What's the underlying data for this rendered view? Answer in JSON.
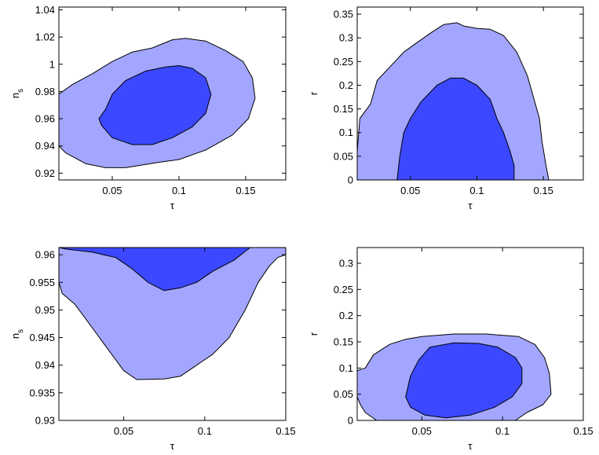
{
  "colors": {
    "outer_contour": "#a3a6ff",
    "inner_contour": "#3b48ff",
    "axes": "#000000",
    "background": "#ffffff"
  },
  "chart_data": [
    {
      "type": "contour",
      "xlabel": "τ",
      "ylabel": "n",
      "ylabel_sub": "s",
      "xlim": [
        0.01,
        0.18
      ],
      "ylim": [
        0.915,
        1.042
      ],
      "xticks": [
        "0.05",
        "0.1",
        "0.15"
      ],
      "xtick_values": [
        0.05,
        0.1,
        0.15
      ],
      "yticks": [
        "0.92",
        "0.94",
        "0.96",
        "0.98",
        "1",
        "1.02",
        "1.04"
      ],
      "ytick_values": [
        0.92,
        0.94,
        0.96,
        0.98,
        1.0,
        1.02,
        1.04
      ],
      "contours": {
        "outer": [
          [
            0.01,
            0.978
          ],
          [
            0.02,
            0.985
          ],
          [
            0.035,
            0.993
          ],
          [
            0.05,
            1.002
          ],
          [
            0.065,
            1.009
          ],
          [
            0.08,
            1.012
          ],
          [
            0.095,
            1.018
          ],
          [
            0.105,
            1.019
          ],
          [
            0.12,
            1.017
          ],
          [
            0.135,
            1.01
          ],
          [
            0.148,
            1.002
          ],
          [
            0.155,
            0.99
          ],
          [
            0.157,
            0.975
          ],
          [
            0.152,
            0.96
          ],
          [
            0.14,
            0.948
          ],
          [
            0.12,
            0.937
          ],
          [
            0.1,
            0.93
          ],
          [
            0.085,
            0.928
          ],
          [
            0.06,
            0.924
          ],
          [
            0.045,
            0.924
          ],
          [
            0.03,
            0.927
          ],
          [
            0.015,
            0.935
          ],
          [
            0.01,
            0.94
          ]
        ],
        "inner": [
          [
            0.045,
            0.967
          ],
          [
            0.05,
            0.978
          ],
          [
            0.06,
            0.988
          ],
          [
            0.075,
            0.995
          ],
          [
            0.09,
            0.998
          ],
          [
            0.1,
            0.999
          ],
          [
            0.11,
            0.997
          ],
          [
            0.12,
            0.99
          ],
          [
            0.124,
            0.978
          ],
          [
            0.12,
            0.964
          ],
          [
            0.11,
            0.954
          ],
          [
            0.095,
            0.946
          ],
          [
            0.08,
            0.941
          ],
          [
            0.065,
            0.941
          ],
          [
            0.05,
            0.946
          ],
          [
            0.042,
            0.955
          ],
          [
            0.04,
            0.96
          ]
        ]
      }
    },
    {
      "type": "contour",
      "xlabel": "τ",
      "ylabel": "r",
      "ylabel_sub": "",
      "xlim": [
        0.01,
        0.18
      ],
      "ylim": [
        0,
        0.365
      ],
      "xticks": [
        "0.05",
        "0.1",
        "0.15"
      ],
      "xtick_values": [
        0.05,
        0.1,
        0.15
      ],
      "yticks": [
        "0",
        "0.05",
        "0.1",
        "0.15",
        "0.2",
        "0.25",
        "0.3",
        "0.35"
      ],
      "ytick_values": [
        0,
        0.05,
        0.1,
        0.15,
        0.2,
        0.25,
        0.3,
        0.35
      ],
      "contours": {
        "outer": [
          [
            0.01,
            0
          ],
          [
            0.01,
            0.06
          ],
          [
            0.012,
            0.13
          ],
          [
            0.02,
            0.16
          ],
          [
            0.025,
            0.21
          ],
          [
            0.035,
            0.24
          ],
          [
            0.045,
            0.27
          ],
          [
            0.055,
            0.29
          ],
          [
            0.065,
            0.31
          ],
          [
            0.075,
            0.328
          ],
          [
            0.085,
            0.332
          ],
          [
            0.09,
            0.325
          ],
          [
            0.1,
            0.32
          ],
          [
            0.11,
            0.318
          ],
          [
            0.12,
            0.305
          ],
          [
            0.13,
            0.27
          ],
          [
            0.138,
            0.22
          ],
          [
            0.142,
            0.18
          ],
          [
            0.147,
            0.13
          ],
          [
            0.149,
            0.08
          ],
          [
            0.152,
            0.03
          ],
          [
            0.154,
            0
          ]
        ],
        "inner": [
          [
            0.04,
            0
          ],
          [
            0.042,
            0.05
          ],
          [
            0.045,
            0.1
          ],
          [
            0.05,
            0.13
          ],
          [
            0.058,
            0.165
          ],
          [
            0.07,
            0.2
          ],
          [
            0.08,
            0.215
          ],
          [
            0.09,
            0.215
          ],
          [
            0.1,
            0.2
          ],
          [
            0.11,
            0.17
          ],
          [
            0.115,
            0.13
          ],
          [
            0.12,
            0.1
          ],
          [
            0.125,
            0.06
          ],
          [
            0.128,
            0.03
          ],
          [
            0.128,
            0
          ]
        ]
      }
    },
    {
      "type": "contour",
      "xlabel": "τ",
      "ylabel": "n",
      "ylabel_sub": "s",
      "xlim": [
        0.01,
        0.15
      ],
      "ylim": [
        0.93,
        0.9613
      ],
      "xticks": [
        "0.05",
        "0.1",
        "0.15"
      ],
      "xtick_values": [
        0.05,
        0.1,
        0.15
      ],
      "yticks": [
        "0.93",
        "0.935",
        "0.94",
        "0.945",
        "0.95",
        "0.955",
        "0.96"
      ],
      "ytick_values": [
        0.93,
        0.935,
        0.94,
        0.945,
        0.95,
        0.955,
        0.96
      ],
      "contours": {
        "outer": [
          [
            0.01,
            0.9613
          ],
          [
            0.15,
            0.9613
          ],
          [
            0.15,
            0.96
          ],
          [
            0.145,
            0.9595
          ],
          [
            0.14,
            0.958
          ],
          [
            0.133,
            0.955
          ],
          [
            0.125,
            0.95
          ],
          [
            0.115,
            0.945
          ],
          [
            0.105,
            0.942
          ],
          [
            0.095,
            0.94
          ],
          [
            0.085,
            0.938
          ],
          [
            0.075,
            0.9375
          ],
          [
            0.058,
            0.9374
          ],
          [
            0.05,
            0.939
          ],
          [
            0.04,
            0.943
          ],
          [
            0.03,
            0.947
          ],
          [
            0.02,
            0.951
          ],
          [
            0.012,
            0.953
          ],
          [
            0.01,
            0.955
          ]
        ],
        "inner": [
          [
            0.01,
            0.9613
          ],
          [
            0.128,
            0.9613
          ],
          [
            0.118,
            0.959
          ],
          [
            0.105,
            0.957
          ],
          [
            0.095,
            0.955
          ],
          [
            0.085,
            0.954
          ],
          [
            0.075,
            0.9535
          ],
          [
            0.065,
            0.955
          ],
          [
            0.055,
            0.9575
          ],
          [
            0.045,
            0.9595
          ],
          [
            0.03,
            0.9605
          ],
          [
            0.015,
            0.961
          ]
        ]
      }
    },
    {
      "type": "contour",
      "xlabel": "τ",
      "ylabel": "r",
      "ylabel_sub": "",
      "xlim": [
        0.01,
        0.15
      ],
      "ylim": [
        0,
        0.33
      ],
      "xticks": [
        "0.05",
        "0.1",
        "0.15"
      ],
      "xtick_values": [
        0.05,
        0.1,
        0.15
      ],
      "yticks": [
        "0",
        "0.05",
        "0.1",
        "0.15",
        "0.2",
        "0.25",
        "0.3"
      ],
      "ytick_values": [
        0,
        0.05,
        0.1,
        0.15,
        0.2,
        0.25,
        0.3
      ],
      "contours": {
        "outer": [
          [
            0.01,
            0.045
          ],
          [
            0.01,
            0.095
          ],
          [
            0.015,
            0.1
          ],
          [
            0.02,
            0.125
          ],
          [
            0.03,
            0.145
          ],
          [
            0.04,
            0.155
          ],
          [
            0.05,
            0.16
          ],
          [
            0.07,
            0.165
          ],
          [
            0.09,
            0.165
          ],
          [
            0.11,
            0.16
          ],
          [
            0.12,
            0.145
          ],
          [
            0.126,
            0.12
          ],
          [
            0.129,
            0.09
          ],
          [
            0.13,
            0.05
          ],
          [
            0.125,
            0.03
          ],
          [
            0.115,
            0.015
          ],
          [
            0.108,
            0
          ],
          [
            0.022,
            0
          ],
          [
            0.015,
            0.015
          ],
          [
            0.012,
            0.03
          ]
        ],
        "inner": [
          [
            0.04,
            0.045
          ],
          [
            0.043,
            0.085
          ],
          [
            0.048,
            0.115
          ],
          [
            0.055,
            0.14
          ],
          [
            0.07,
            0.148
          ],
          [
            0.085,
            0.147
          ],
          [
            0.097,
            0.14
          ],
          [
            0.108,
            0.12
          ],
          [
            0.112,
            0.1
          ],
          [
            0.112,
            0.07
          ],
          [
            0.106,
            0.045
          ],
          [
            0.095,
            0.025
          ],
          [
            0.08,
            0.01
          ],
          [
            0.065,
            0.005
          ],
          [
            0.052,
            0.01
          ],
          [
            0.043,
            0.025
          ]
        ]
      }
    }
  ]
}
